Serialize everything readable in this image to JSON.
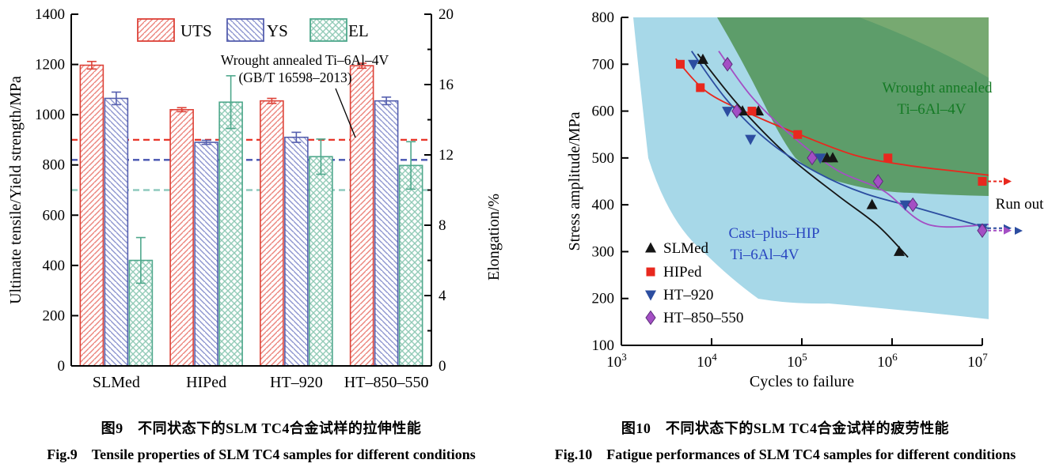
{
  "figure9": {
    "caption_cn": "图9　不同状态下的SLM TC4合金试样的拉伸性能",
    "caption_en": "Fig.9　Tensile properties of SLM TC4 samples for different conditions"
  },
  "figure10": {
    "caption_cn": "图10　不同状态下的SLM TC4合金试样的疲劳性能",
    "caption_en": "Fig.10　Fatigue performances of SLM TC4 samples for different conditions"
  },
  "chart_data": [
    {
      "id": "fig9",
      "type": "bar",
      "categories": [
        "SLMed",
        "HIPed",
        "HT–920",
        "HT–850–550"
      ],
      "left_axis": {
        "label": "Ultimate tensile/Yield strength/MPa",
        "min": 0,
        "max": 1400,
        "step": 200
      },
      "right_axis": {
        "label": "Elongation/%",
        "min": 0,
        "max": 20,
        "step": 4,
        "minor_step": 2
      },
      "series": [
        {
          "name": "UTS",
          "axis": "left",
          "hatch": "fwd",
          "border": "#dd4238",
          "line": "#ec837b",
          "values": [
            1197,
            1020,
            1055,
            1195
          ],
          "errors": [
            15,
            8,
            10,
            10
          ]
        },
        {
          "name": "YS",
          "axis": "left",
          "hatch": "bwd",
          "border": "#555fae",
          "line": "#8d95cf",
          "values": [
            1065,
            890,
            910,
            1055
          ],
          "errors": [
            25,
            8,
            20,
            15
          ]
        },
        {
          "name": "EL",
          "axis": "right",
          "hatch": "cross",
          "border": "#4fa88c",
          "line": "#93cbb8",
          "values": [
            6.0,
            15.0,
            11.9,
            11.4
          ],
          "errors": [
            1.3,
            1.5,
            1.0,
            1.35
          ]
        }
      ],
      "ref_lines": [
        {
          "value": 900,
          "color": "#e8382c"
        },
        {
          "value": 820,
          "color": "#4653b0"
        },
        {
          "value": 700,
          "color": "#8fcabe"
        }
      ],
      "annotation": {
        "line1": "Wrought annealed Ti–6Al–4V",
        "line2": "(GB/T 16598–2013)"
      }
    },
    {
      "id": "fig10",
      "type": "scatter",
      "x_axis": {
        "label": "Cycles to failure",
        "scale": "log",
        "tick_exponents": [
          3,
          4,
          5,
          6,
          7
        ]
      },
      "y_axis": {
        "label": "Stress amplitude/MPa",
        "min": 100,
        "max": 800,
        "step": 100
      },
      "runout_label": "Run out",
      "regions": [
        {
          "name": "cast-plus-hip-band",
          "label1": "Cast–plus–HIP",
          "label2": "Ti–6Al–4V",
          "fill": "#a7d8e8",
          "label_color": "#2946c0"
        },
        {
          "name": "wrought-annealed-band",
          "label1": "Wrought annealed",
          "label2": "Ti–6Al–4V",
          "fill": "#3d8435",
          "label_color": "#157a25"
        }
      ],
      "series": [
        {
          "name": "SLMed",
          "marker": "triangle-up",
          "color": "#151515",
          "points": [
            [
              8000,
              710
            ],
            [
              22000,
              600
            ],
            [
              33000,
              600
            ],
            [
              190000,
              500
            ],
            [
              220000,
              500
            ],
            [
              600000,
              400
            ],
            [
              1200000,
              300
            ]
          ],
          "curve": [
            [
              7000,
              722
            ],
            [
              20000,
              612
            ],
            [
              70000,
              505
            ],
            [
              250000,
              420
            ],
            [
              700000,
              355
            ],
            [
              1500000,
              288
            ]
          ]
        },
        {
          "name": "HIPed",
          "marker": "square",
          "color": "#e8281e",
          "points": [
            [
              4500,
              700
            ],
            [
              7500,
              650
            ],
            [
              28000,
              600
            ],
            [
              90000,
              550
            ],
            [
              900000,
              500
            ]
          ],
          "runout": [
            10000000,
            450
          ],
          "curve": [
            [
              4000,
              712
            ],
            [
              9000,
              640
            ],
            [
              30000,
              590
            ],
            [
              100000,
              548
            ],
            [
              400000,
              505
            ],
            [
              1500000,
              484
            ],
            [
              5000000,
              472
            ],
            [
              12000000,
              463
            ]
          ]
        },
        {
          "name": "HT–920",
          "marker": "triangle-down",
          "color": "#2c4da0",
          "points": [
            [
              6300,
              700
            ],
            [
              15000,
              600
            ],
            [
              27000,
              540
            ],
            [
              160000,
              500
            ],
            [
              1400000,
              400
            ]
          ],
          "runout": [
            10000000,
            350
          ],
          "curve": [
            [
              6000,
              728
            ],
            [
              15000,
              622
            ],
            [
              45000,
              532
            ],
            [
              150000,
              468
            ],
            [
              500000,
              424
            ],
            [
              2000000,
              392
            ],
            [
              12000000,
              349
            ]
          ]
        },
        {
          "name": "HT–850–550",
          "marker": "diamond",
          "color": "#a44fc4",
          "points": [
            [
              15000,
              700
            ],
            [
              19000,
              600
            ],
            [
              130000,
              500
            ],
            [
              700000,
              450
            ],
            [
              1700000,
              400
            ]
          ],
          "runout": [
            10000000,
            345
          ],
          "curve": [
            [
              12000,
              728
            ],
            [
              28000,
              630
            ],
            [
              80000,
              545
            ],
            [
              250000,
              473
            ],
            [
              800000,
              430
            ],
            [
              2500000,
              358
            ],
            [
              12000000,
              358
            ]
          ]
        }
      ]
    }
  ]
}
